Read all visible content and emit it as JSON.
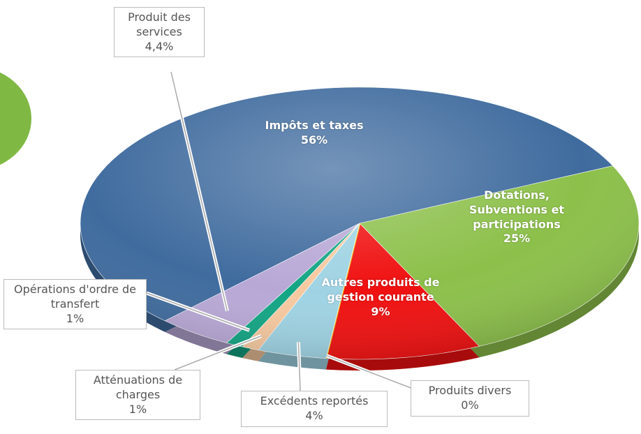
{
  "chart_data": {
    "type": "pie",
    "categories": [
      "Dotations, Subventions et participations",
      "Autres produits de gestion courante",
      "Produits divers",
      "Excédents reportés",
      "Atténuations de charges",
      "Opérations d'ordre de transfert",
      "Produit des services",
      "Impôts et taxes"
    ],
    "values": [
      25,
      9,
      0,
      4,
      1,
      1,
      4.4,
      56
    ],
    "value_labels": [
      "25%",
      "9%",
      "0%",
      "4%",
      "1%",
      "1%",
      "4,4%",
      "56%"
    ],
    "colors": [
      "#8cc04a",
      "#f01010",
      "#f0c020",
      "#9fd3e3",
      "#f6c9a0",
      "#12a584",
      "#b8a8d6",
      "#3f6b9e"
    ]
  }
}
